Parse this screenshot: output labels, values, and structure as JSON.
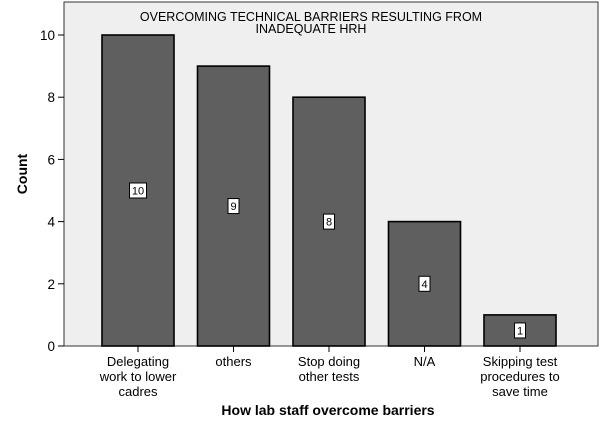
{
  "chart_data": {
    "type": "bar",
    "title": [
      "OVERCOMING TECHNICAL BARRIERS RESULTING FROM",
      "INADEQUATE HRH"
    ],
    "xlabel": "How lab staff overcome barriers",
    "ylabel": "Count",
    "categories": [
      [
        "Delegating",
        "work to lower",
        "cadres"
      ],
      [
        "others"
      ],
      [
        "Stop doing",
        "other tests"
      ],
      [
        "N/A"
      ],
      [
        "Skipping test",
        "procedures to",
        "save time"
      ]
    ],
    "values": [
      10,
      9,
      8,
      4,
      1
    ],
    "data_labels": [
      "10",
      "9",
      "8",
      "4",
      "1"
    ],
    "ylim": [
      0,
      11
    ],
    "yticks": [
      0,
      2,
      4,
      6,
      8,
      10
    ],
    "grid": false,
    "colors": {
      "bar": "#5f5f5f",
      "plot_background": "#efefef"
    }
  }
}
